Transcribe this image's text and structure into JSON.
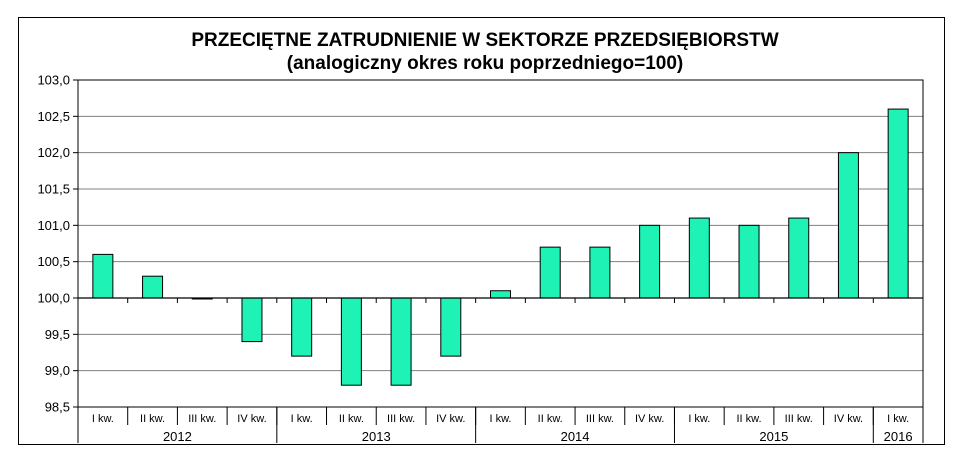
{
  "chart_data": {
    "type": "bar",
    "title": "PRZECIĘTNE ZATRUDNIENIE W SEKTORZE PRZEDSIĘBIORSTW",
    "subtitle": "(analogiczny okres roku poprzedniego=100)",
    "xlabel": "",
    "ylabel": "",
    "ylim": [
      98.5,
      103.0
    ],
    "baseline": 100.0,
    "yticks": [
      "98,5",
      "99,0",
      "99,5",
      "100,0",
      "100,5",
      "101,0",
      "101,5",
      "102,0",
      "102,5",
      "103,0"
    ],
    "grid": true,
    "legend": null,
    "bar_color": "#1EF2B4",
    "bar_outline": "#000000",
    "categories": [
      "I kw.",
      "II kw.",
      "III kw.",
      "IV kw.",
      "I kw.",
      "II kw.",
      "III kw.",
      "IV kw.",
      "I kw.",
      "II kw.",
      "III kw.",
      "IV kw.",
      "I kw.",
      "II kw.",
      "III kw.",
      "IV kw.",
      "I kw."
    ],
    "year_groups": [
      {
        "label": "2012",
        "span": 4
      },
      {
        "label": "2013",
        "span": 4
      },
      {
        "label": "2014",
        "span": 4
      },
      {
        "label": "2015",
        "span": 4
      },
      {
        "label": "2016",
        "span": 1
      }
    ],
    "values": [
      100.6,
      100.3,
      100.0,
      99.4,
      99.2,
      98.8,
      98.8,
      99.2,
      100.1,
      100.7,
      100.7,
      101.0,
      101.1,
      101.0,
      101.1,
      102.0,
      102.6
    ]
  }
}
